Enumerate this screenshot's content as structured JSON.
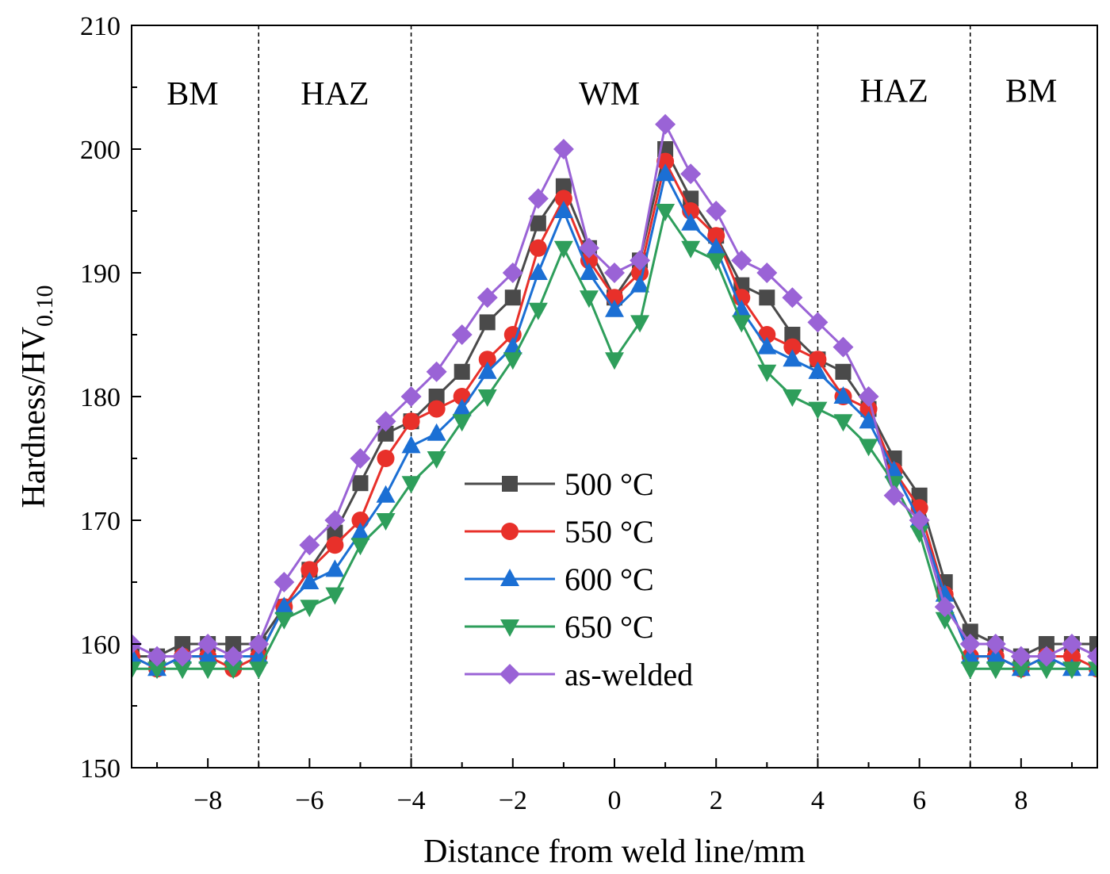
{
  "chart_data": {
    "type": "line",
    "title": "",
    "xlabel": "Distance from weld line/mm",
    "ylabel_main": "Hardness/HV",
    "ylabel_sub": "0.10",
    "xlim": [
      -9.5,
      9.5
    ],
    "ylim": [
      150,
      210
    ],
    "xticks": [
      -8,
      -6,
      -4,
      -2,
      0,
      2,
      4,
      6,
      8
    ],
    "xtick_labels": [
      "−8",
      "−6",
      "−4",
      "−2",
      "0",
      "2",
      "4",
      "6",
      "8"
    ],
    "yticks": [
      150,
      160,
      170,
      180,
      190,
      200,
      210
    ],
    "ytick_labels": [
      "150",
      "160",
      "170",
      "180",
      "190",
      "200",
      "210"
    ],
    "boundaries": [
      -7,
      -4,
      4,
      7
    ],
    "regions": [
      {
        "label": "BM",
        "x": -8.3,
        "y": 204.5
      },
      {
        "label": "HAZ",
        "x": -5.5,
        "y": 204.5
      },
      {
        "label": "WM",
        "x": -0.1,
        "y": 204.5
      },
      {
        "label": "HAZ",
        "x": 5.5,
        "y": 204.7
      },
      {
        "label": "BM",
        "x": 8.2,
        "y": 204.7
      }
    ],
    "x": [
      -9.5,
      -9,
      -8.5,
      -8,
      -7.5,
      -7,
      -6.5,
      -6,
      -5.5,
      -5,
      -4.5,
      -4,
      -3.5,
      -3,
      -2.5,
      -2,
      -1.5,
      -1,
      -0.5,
      0,
      0.5,
      1,
      1.5,
      2,
      2.5,
      3,
      3.5,
      4,
      4.5,
      5,
      5.5,
      6,
      6.5,
      7,
      7.5,
      8,
      8.5,
      9,
      9.5
    ],
    "series": [
      {
        "name": "500 °C",
        "color": "#4a4a4a",
        "marker": "square",
        "values": [
          159,
          159,
          160,
          160,
          160,
          160,
          163,
          166,
          169,
          173,
          177,
          178,
          180,
          182,
          186,
          188,
          194,
          197,
          192,
          188,
          191,
          200,
          196,
          193,
          189,
          188,
          185,
          183,
          182,
          179,
          175,
          172,
          165,
          161,
          160,
          159,
          160,
          160,
          160
        ]
      },
      {
        "name": "550 °C",
        "color": "#e8302a",
        "marker": "circle",
        "values": [
          159,
          158,
          159,
          159,
          158,
          159,
          163,
          166,
          168,
          170,
          175,
          178,
          179,
          180,
          183,
          185,
          192,
          196,
          191,
          188,
          190,
          199,
          195,
          193,
          188,
          185,
          184,
          183,
          180,
          179,
          174,
          171,
          164,
          159,
          159,
          158,
          159,
          159,
          158
        ]
      },
      {
        "name": "600 °C",
        "color": "#1b6fd4",
        "marker": "triangle-up",
        "values": [
          159,
          158,
          159,
          159,
          159,
          159,
          163,
          165,
          166,
          169,
          172,
          176,
          177,
          179,
          182,
          184,
          190,
          195,
          190,
          187,
          189,
          198,
          194,
          192,
          187,
          184,
          183,
          182,
          180,
          178,
          174,
          170,
          164,
          159,
          159,
          158,
          159,
          158,
          158
        ]
      },
      {
        "name": "650 °C",
        "color": "#2e9e5b",
        "marker": "triangle-down",
        "values": [
          158,
          158,
          158,
          158,
          158,
          158,
          162,
          163,
          164,
          168,
          170,
          173,
          175,
          178,
          180,
          183,
          187,
          192,
          188,
          183,
          186,
          195,
          192,
          191,
          186,
          182,
          180,
          179,
          178,
          176,
          173,
          169,
          162,
          158,
          158,
          158,
          158,
          158,
          158
        ]
      },
      {
        "name": "as-welded",
        "color": "#9a63d6",
        "marker": "diamond",
        "values": [
          160,
          159,
          159,
          160,
          159,
          160,
          165,
          168,
          170,
          175,
          178,
          180,
          182,
          185,
          188,
          190,
          196,
          200,
          192,
          190,
          191,
          202,
          198,
          195,
          191,
          190,
          188,
          186,
          184,
          180,
          172,
          170,
          163,
          160,
          160,
          159,
          159,
          160,
          159
        ]
      }
    ],
    "legend_position": "center"
  }
}
